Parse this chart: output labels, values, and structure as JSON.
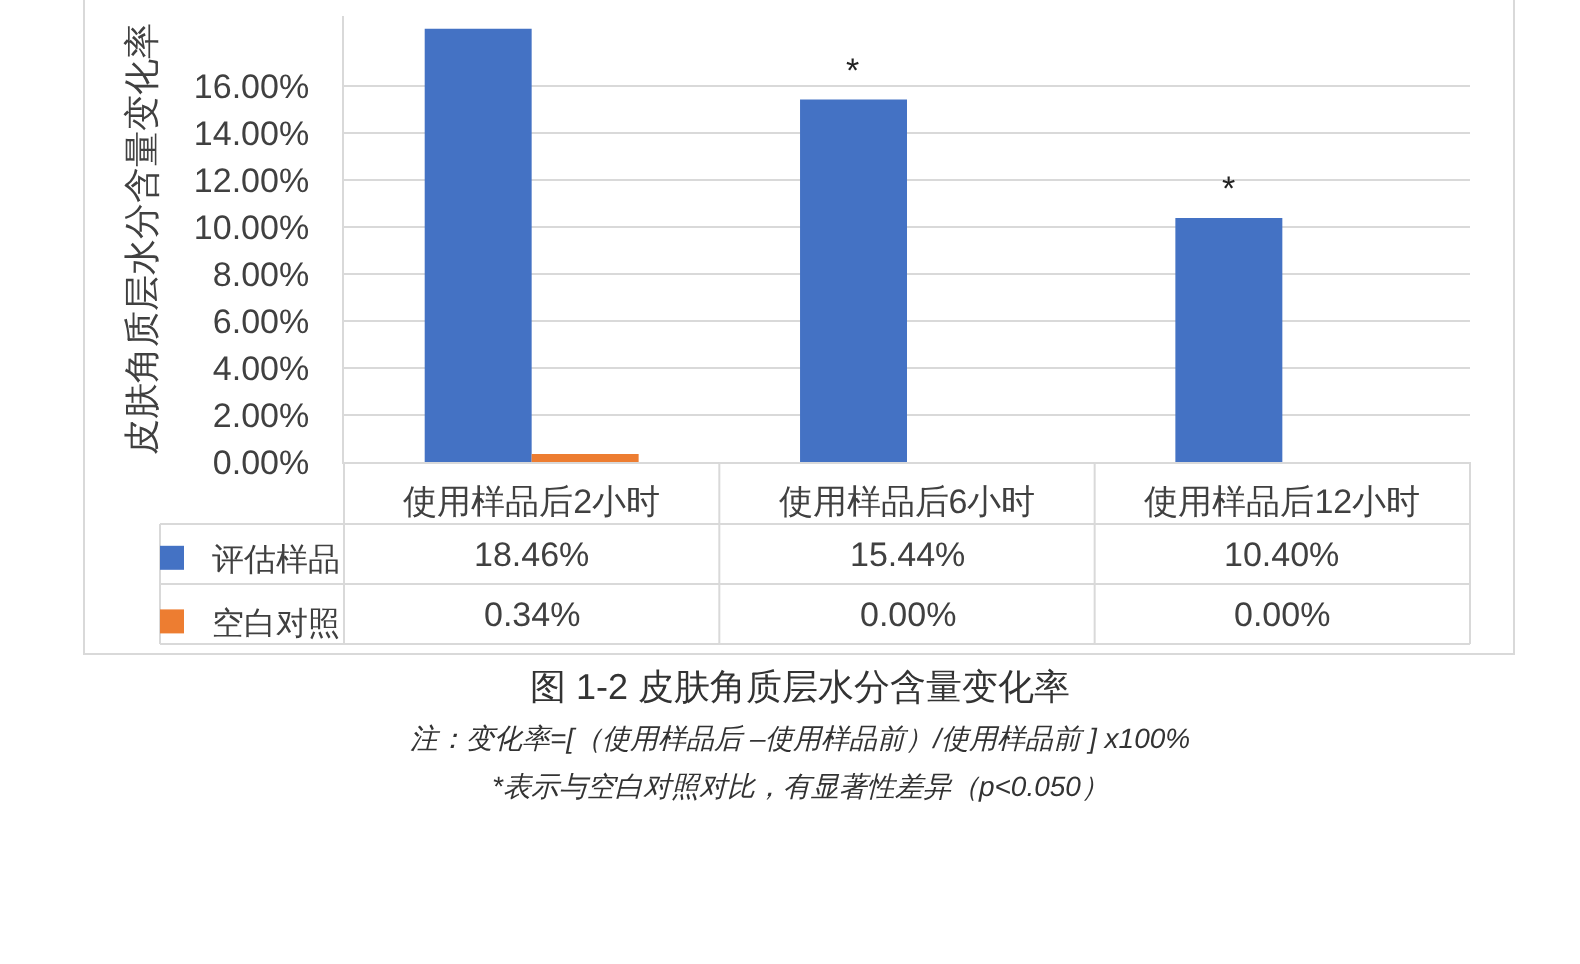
{
  "chart_data": {
    "type": "bar",
    "title": "图 1-2 皮肤角质层水分含量变化率",
    "ylabel": "皮肤角质层水分含量变化率",
    "categories": [
      "使用样品后2小时",
      "使用样品后6小时",
      "使用样品后12小时"
    ],
    "series": [
      {
        "name": "评估样品",
        "color": "#4472c4",
        "values": [
          18.46,
          15.44,
          10.4
        ],
        "value_labels": [
          "18.46%",
          "15.44%",
          "10.40%"
        ]
      },
      {
        "name": "空白对照",
        "color": "#ed7d31",
        "values": [
          0.34,
          0,
          0
        ],
        "value_labels": [
          "0.34%",
          "0.00%",
          "0.00%"
        ]
      }
    ],
    "ylim": [
      0,
      19
    ],
    "yticks": [
      {
        "value": 0,
        "label": "0.00%"
      },
      {
        "value": 2,
        "label": "2.00%"
      },
      {
        "value": 4,
        "label": "4.00%"
      },
      {
        "value": 6,
        "label": "6.00%"
      },
      {
        "value": 8,
        "label": "8.00%"
      },
      {
        "value": 10,
        "label": "10.00%"
      },
      {
        "value": 12,
        "label": "12.00%"
      },
      {
        "value": 14,
        "label": "14.00%"
      },
      {
        "value": 16,
        "label": "16.00%"
      }
    ],
    "grid": "y",
    "legend": "bottom left",
    "annotations": [
      {
        "text": "*",
        "x": "使用样品后6小时",
        "y": 15.44
      },
      {
        "text": "*",
        "x": "使用样品后12小时",
        "y": 10.4
      },
      "注：变化率=[（使用样品后 –使用样品前）/使用样品前 ] x100%",
      "*表示与空白对照对比，有显著性差异（p<0.050）"
    ]
  }
}
